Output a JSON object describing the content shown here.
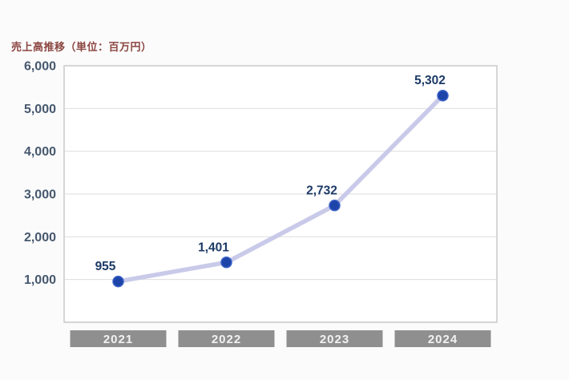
{
  "title": "売上高推移（単位：百万円）",
  "colors": {
    "background": "#fbfbfb",
    "plot_bg": "#ffffff",
    "plot_border": "#c9c9c9",
    "gridline": "#dedede",
    "title_text": "#8b4540",
    "axis_text": "#46586e",
    "line": "#c9cae9",
    "point_fill": "#1d44a8",
    "point_edge": "#3a62c8",
    "data_label": "#1c3a66",
    "x_box_bg": "#8f8f8f",
    "x_box_text": "#f2f2f2"
  },
  "chart_data": {
    "type": "line",
    "title": "売上高推移（単位：百万円）",
    "categories": [
      "2021",
      "2022",
      "2023",
      "2024"
    ],
    "values": [
      955,
      1401,
      2732,
      5302
    ],
    "value_labels": [
      "955",
      "1,401",
      "2,732",
      "5,302"
    ],
    "ylim": [
      0,
      6000
    ],
    "y_tick_interval": 1000,
    "y_tick_labels": [
      "1,000",
      "2,000",
      "3,000",
      "4,000",
      "5,000",
      "6,000"
    ],
    "grid": true,
    "legend": false,
    "x_axis_style": "gray-label-boxes",
    "line_style": "thick-lavender-with-navy-markers"
  }
}
